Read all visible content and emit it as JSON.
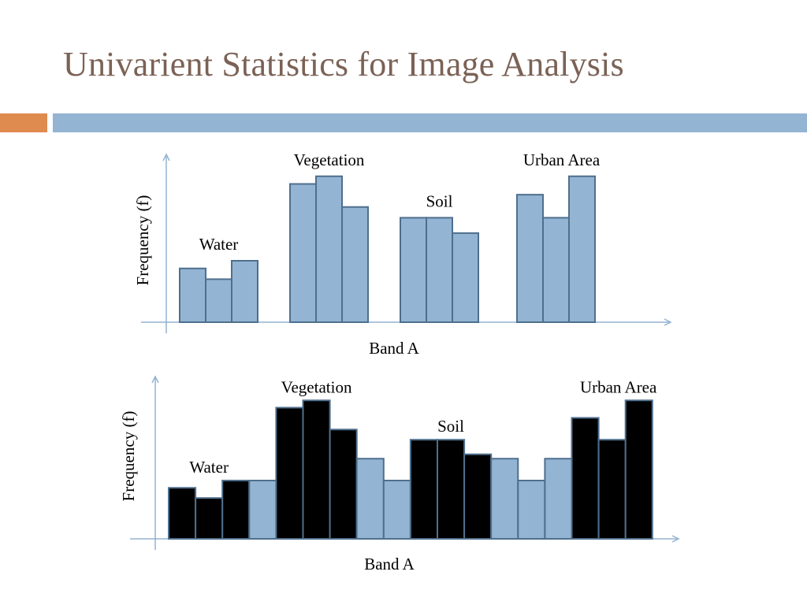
{
  "slide": {
    "title": "Univarient Statistics for Image Analysis"
  },
  "colors": {
    "accent_orange": "#df8a4f",
    "accent_blue": "#93b4d2",
    "bar_blue": "#93b4d2",
    "bar_stroke": "#4f6f8d",
    "bar_black": "#000000",
    "axis": "#93b4d2",
    "title": "#7b6256"
  },
  "chart_data": [
    {
      "type": "bar",
      "xlabel": "Band A",
      "ylabel": "Frequency (f)",
      "legend": "none",
      "annotations": [
        "Water",
        "Vegetation",
        "Soil",
        "Urban Area"
      ],
      "groups": [
        {
          "label": "Water",
          "values": [
            3.5,
            2.8,
            4.0
          ]
        },
        {
          "label": "Vegetation",
          "values": [
            9.0,
            9.5,
            7.5
          ]
        },
        {
          "label": "Soil",
          "values": [
            6.8,
            6.8,
            5.8
          ]
        },
        {
          "label": "Urban Area",
          "values": [
            8.3,
            6.8,
            9.5
          ]
        }
      ],
      "ylim": [
        0,
        11
      ]
    },
    {
      "type": "bar",
      "xlabel": "Band A",
      "ylabel": "Frequency (f)",
      "legend": "none",
      "annotations": [
        "Water",
        "Vegetation",
        "Soil",
        "Urban Area"
      ],
      "bars": [
        {
          "value": 3.5,
          "class": "Water"
        },
        {
          "value": 2.8,
          "class": "Water"
        },
        {
          "value": 4.0,
          "class": "Water"
        },
        {
          "value": 4.0,
          "class": "overlap"
        },
        {
          "value": 9.0,
          "class": "Vegetation"
        },
        {
          "value": 9.5,
          "class": "Vegetation"
        },
        {
          "value": 7.5,
          "class": "Vegetation"
        },
        {
          "value": 5.5,
          "class": "overlap"
        },
        {
          "value": 4.0,
          "class": "overlap"
        },
        {
          "value": 6.8,
          "class": "Soil"
        },
        {
          "value": 6.8,
          "class": "Soil"
        },
        {
          "value": 5.8,
          "class": "Soil"
        },
        {
          "value": 5.5,
          "class": "overlap"
        },
        {
          "value": 4.0,
          "class": "overlap"
        },
        {
          "value": 5.5,
          "class": "overlap"
        },
        {
          "value": 8.3,
          "class": "Urban Area"
        },
        {
          "value": 6.8,
          "class": "Urban Area"
        },
        {
          "value": 9.5,
          "class": "Urban Area"
        }
      ],
      "ylim": [
        0,
        10
      ]
    }
  ]
}
